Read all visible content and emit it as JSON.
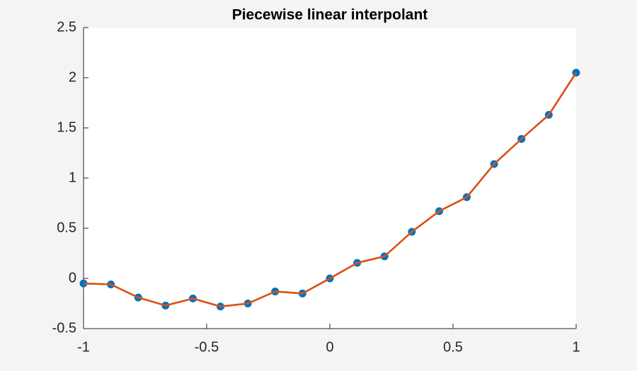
{
  "chart_data": {
    "type": "line",
    "title": "Piecewise linear interpolant",
    "x": [
      -1,
      -0.889,
      -0.778,
      -0.667,
      -0.556,
      -0.444,
      -0.333,
      -0.222,
      -0.111,
      0,
      0.111,
      0.222,
      0.333,
      0.444,
      0.556,
      0.667,
      0.778,
      0.889,
      1
    ],
    "values": [
      -0.05,
      -0.06,
      -0.19,
      -0.27,
      -0.2,
      -0.28,
      -0.25,
      -0.13,
      -0.15,
      0,
      0.155,
      0.22,
      0.465,
      0.67,
      0.81,
      1.14,
      1.39,
      1.63,
      2.05
    ],
    "marker_color": "#0072bd",
    "line_color": "#d95319",
    "xlim": [
      -1,
      1
    ],
    "xticks": [
      -1,
      -0.5,
      0,
      0.5,
      1
    ],
    "ylim": [
      -0.5,
      2.5
    ],
    "yticks": [
      -0.5,
      0,
      0.5,
      1,
      1.5,
      2,
      2.5
    ]
  }
}
